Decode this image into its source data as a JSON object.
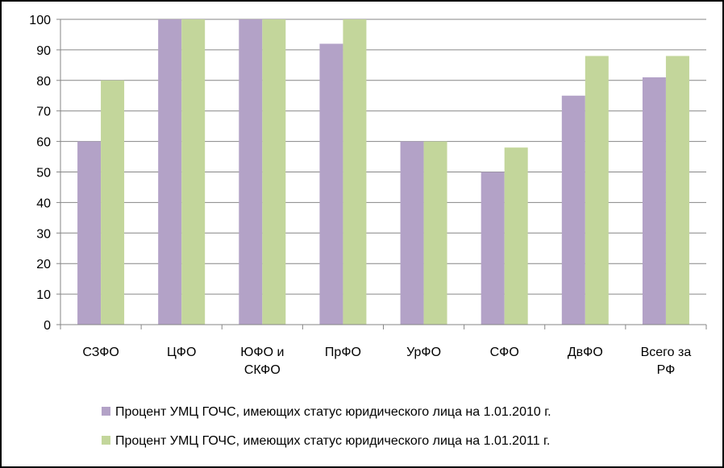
{
  "chart_data": {
    "type": "bar",
    "categories": [
      [
        "СЗФО"
      ],
      [
        "ЦФО"
      ],
      [
        "ЮФО и",
        "СКФО"
      ],
      [
        "ПрФО"
      ],
      [
        "УрФО"
      ],
      [
        "СФО"
      ],
      [
        "ДвФО"
      ],
      [
        "Всего за",
        "РФ"
      ]
    ],
    "series": [
      {
        "name": "Процент УМЦ ГОЧС, имеющих статус юридического лица на 1.01.2010 г.",
        "color": "#b3a2c7",
        "values": [
          60,
          100,
          100,
          92,
          60,
          50,
          75,
          81
        ]
      },
      {
        "name": "Процент УМЦ ГОЧС, имеющих статус юридического лица на 1.01.2011 г.",
        "color": "#c3d69b",
        "values": [
          80,
          100,
          100,
          100,
          60,
          58,
          88,
          88
        ]
      }
    ],
    "yticks": [
      0,
      10,
      20,
      30,
      40,
      50,
      60,
      70,
      80,
      90,
      100
    ],
    "ylim": [
      0,
      100
    ],
    "grid": true,
    "legend_position": "bottom"
  }
}
